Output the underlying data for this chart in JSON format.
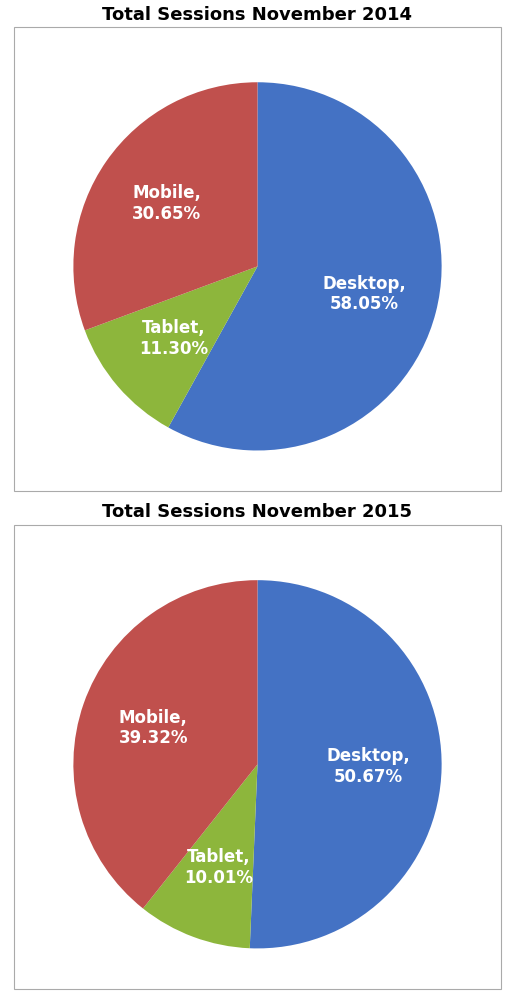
{
  "chart1": {
    "title": "Total Sessions November 2014",
    "values": [
      58.05,
      11.3,
      30.65
    ],
    "colors": [
      "#4472C4",
      "#8DB63C",
      "#C0504D"
    ],
    "labels": [
      "Desktop,\n58.05%",
      "Tablet,\n11.30%",
      "Mobile,\n30.65%"
    ]
  },
  "chart2": {
    "title": "Total Sessions November 2015",
    "values": [
      50.67,
      10.01,
      39.32
    ],
    "colors": [
      "#4472C4",
      "#8DB63C",
      "#C0504D"
    ],
    "labels": [
      "Desktop,\n50.67%",
      "Tablet,\n10.01%",
      "Mobile,\n39.32%"
    ]
  },
  "bg_color": "#FFFFFF",
  "text_color": "#FFFFFF",
  "title_color": "#000000",
  "title_fontsize": 13,
  "label_fontsize": 12,
  "title_fontweight": "bold",
  "label_fontweight": "bold",
  "startangle": 90,
  "counterclock": false
}
